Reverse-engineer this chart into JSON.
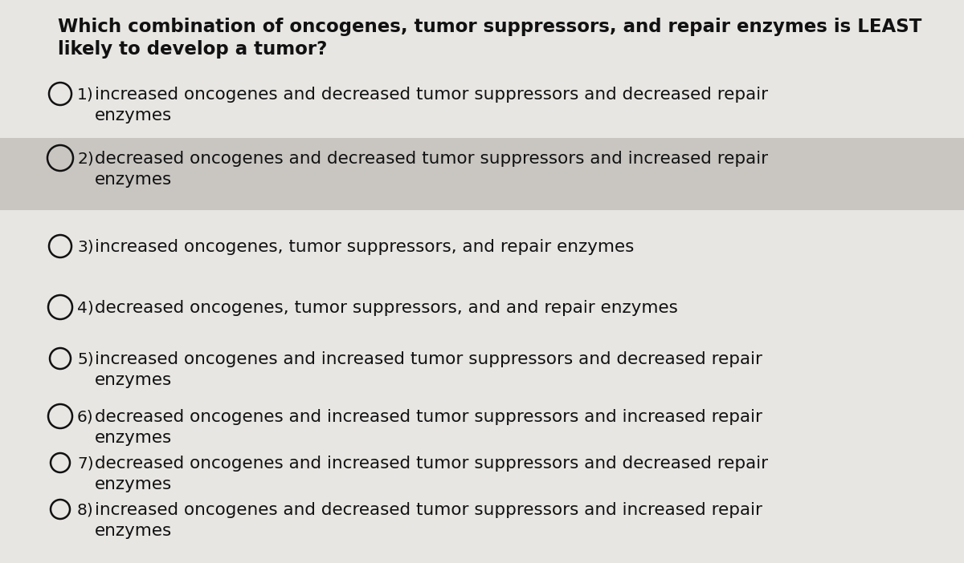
{
  "title_line1": "Which combination of oncogenes, tumor suppressors, and repair enzymes is LEAST",
  "title_line2": "likely to develop a tumor?",
  "title_fontsize": 16.5,
  "title_fontweight": "bold",
  "background_color": "#e8e6e3",
  "highlight_color": "#c9c6c2",
  "text_color": "#111111",
  "options": [
    {
      "num": "1)",
      "line1": "increased oncogenes and decreased tumor suppressors and decreased repair",
      "line2": "enzymes",
      "highlight": false,
      "circle_size": 14
    },
    {
      "num": "2)",
      "line1": "decreased oncogenes and decreased tumor suppressors and increased repair",
      "line2": "enzymes",
      "highlight": true,
      "circle_size": 16
    },
    {
      "num": "3)",
      "line1": "increased oncogenes, tumor suppressors, and repair enzymes",
      "line2": "",
      "highlight": false,
      "circle_size": 14
    },
    {
      "num": "4)",
      "line1": "decreased oncogenes, tumor suppressors, and and repair enzymes",
      "line2": "",
      "highlight": false,
      "circle_size": 15
    },
    {
      "num": "5)",
      "line1": "increased oncogenes and increased tumor suppressors and decreased repair",
      "line2": "enzymes",
      "highlight": false,
      "circle_size": 13
    },
    {
      "num": "6)",
      "line1": "decreased oncogenes and increased tumor suppressors and increased repair",
      "line2": "enzymes",
      "highlight": false,
      "circle_size": 15
    },
    {
      "num": "7)",
      "line1": "decreased oncogenes and increased tumor suppressors and decreased repair",
      "line2": "enzymes",
      "highlight": false,
      "circle_size": 12
    },
    {
      "num": "8)",
      "line1": "increased oncogenes and decreased tumor suppressors and increased repair",
      "line2": "enzymes",
      "highlight": false,
      "circle_size": 12
    }
  ],
  "option_fontsize": 15.5,
  "num_fontsize": 14.5,
  "fig_width": 12.0,
  "fig_height": 7.02,
  "dpi": 100
}
